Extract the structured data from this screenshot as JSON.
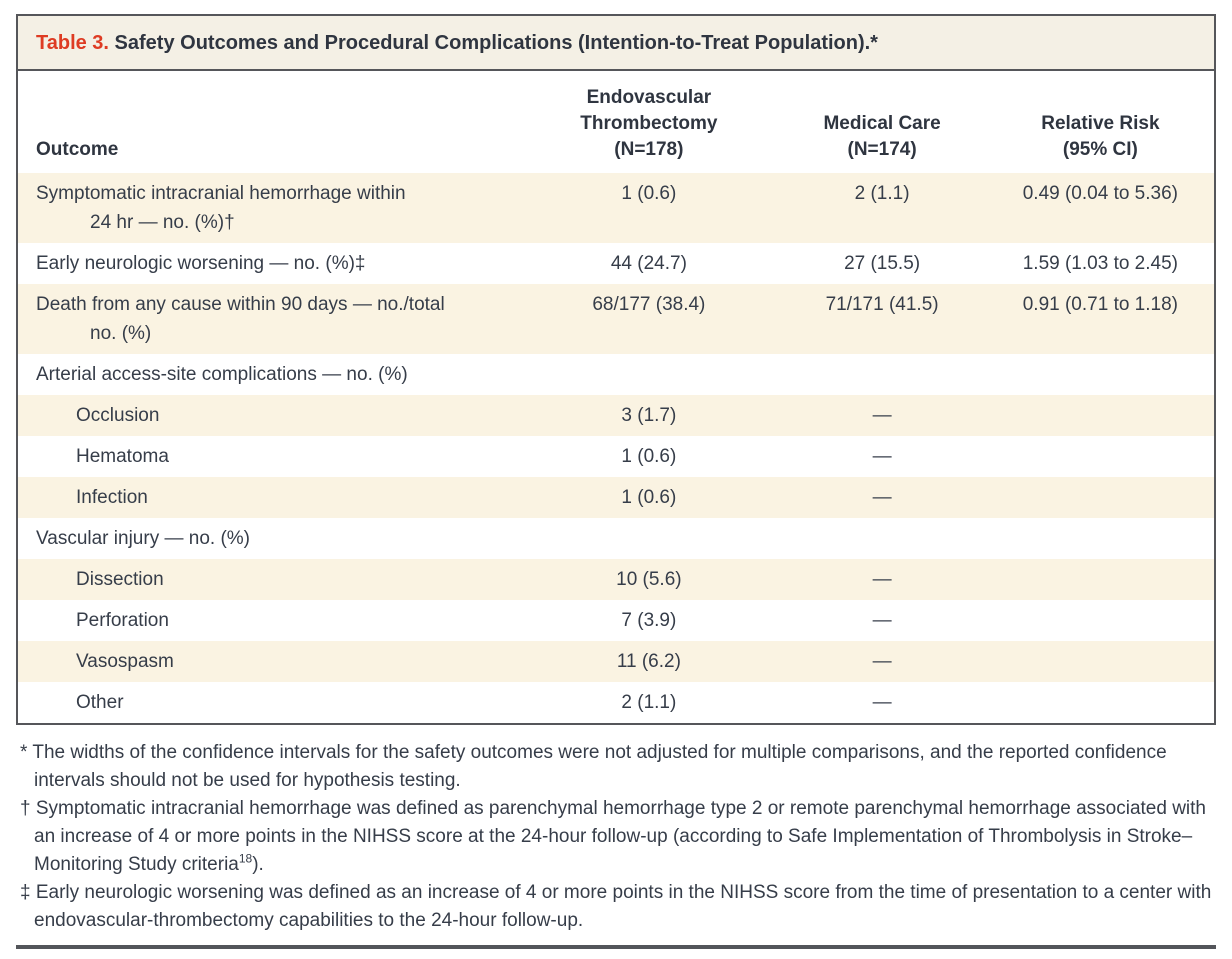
{
  "colors": {
    "table_number_red": "#de3b23",
    "heading_text": "#2f3540",
    "body_text": "#363d49",
    "row_shade_cream": "#faf3e2",
    "title_band_cream": "#f4f0e5",
    "frame_border_gray": "#55565a"
  },
  "title": {
    "label": "Table 3.",
    "text": " Safety Outcomes and Procedural Complications (Intention-to-Treat Population).*"
  },
  "table": {
    "columns": [
      "Outcome",
      "Endovascular Thrombectomy\n(N=178)",
      "Medical Care\n(N=174)",
      "Relative Risk\n(95% CI)"
    ],
    "rows": [
      {
        "label": "Symptomatic intracranial hemorrhage within\n24 hr — no. (%)†",
        "et": "1 (0.6)",
        "mc": "2 (1.1)",
        "rr": "0.49 (0.04 to 5.36)"
      },
      {
        "label": "Early neurologic worsening — no. (%)‡",
        "et": "44 (24.7)",
        "mc": "27 (15.5)",
        "rr": "1.59 (1.03 to 2.45)"
      },
      {
        "label": "Death from any cause within 90 days — no./total\nno. (%)",
        "et": "68/177 (38.4)",
        "mc": "71/171 (41.5)",
        "rr": "0.91 (0.71 to 1.18)"
      },
      {
        "label": "Arterial access-site complications — no. (%)",
        "et": "",
        "mc": "",
        "rr": ""
      },
      {
        "label": "Occlusion",
        "et": "3 (1.7)",
        "mc": "—",
        "rr": ""
      },
      {
        "label": "Hematoma",
        "et": "1 (0.6)",
        "mc": "—",
        "rr": ""
      },
      {
        "label": "Infection",
        "et": "1 (0.6)",
        "mc": "—",
        "rr": ""
      },
      {
        "label": "Vascular injury — no. (%)",
        "et": "",
        "mc": "",
        "rr": ""
      },
      {
        "label": "Dissection",
        "et": "10 (5.6)",
        "mc": "—",
        "rr": ""
      },
      {
        "label": "Perforation",
        "et": "7 (3.9)",
        "mc": "—",
        "rr": ""
      },
      {
        "label": "Vasospasm",
        "et": "11 (6.2)",
        "mc": "—",
        "rr": ""
      },
      {
        "label": "Other",
        "et": "2 (1.1)",
        "mc": "—",
        "rr": ""
      }
    ]
  },
  "footnotes": [
    {
      "symbol": "*",
      "text": "The widths of the confidence intervals for the safety outcomes were not adjusted for multiple comparisons, and the reported confidence intervals should not be used for hypothesis testing."
    },
    {
      "symbol": "†",
      "text_before": "Symptomatic intracranial hemorrhage was defined as parenchymal hemorrhage type 2 or remote parenchymal hemorrhage associated with an increase of 4 or more points in the NIHSS score at the 24-hour follow-up (according to Safe Implementation of Thrombolysis in Stroke–Monitoring Study criteria",
      "sup": "18",
      "text_after": ")."
    },
    {
      "symbol": "‡",
      "text": "Early neurologic worsening was defined as an increase of 4 or more points in the NIHSS score from the time of presentation to a center with endovascular-thrombectomy capabilities to the 24-hour follow-up."
    }
  ]
}
